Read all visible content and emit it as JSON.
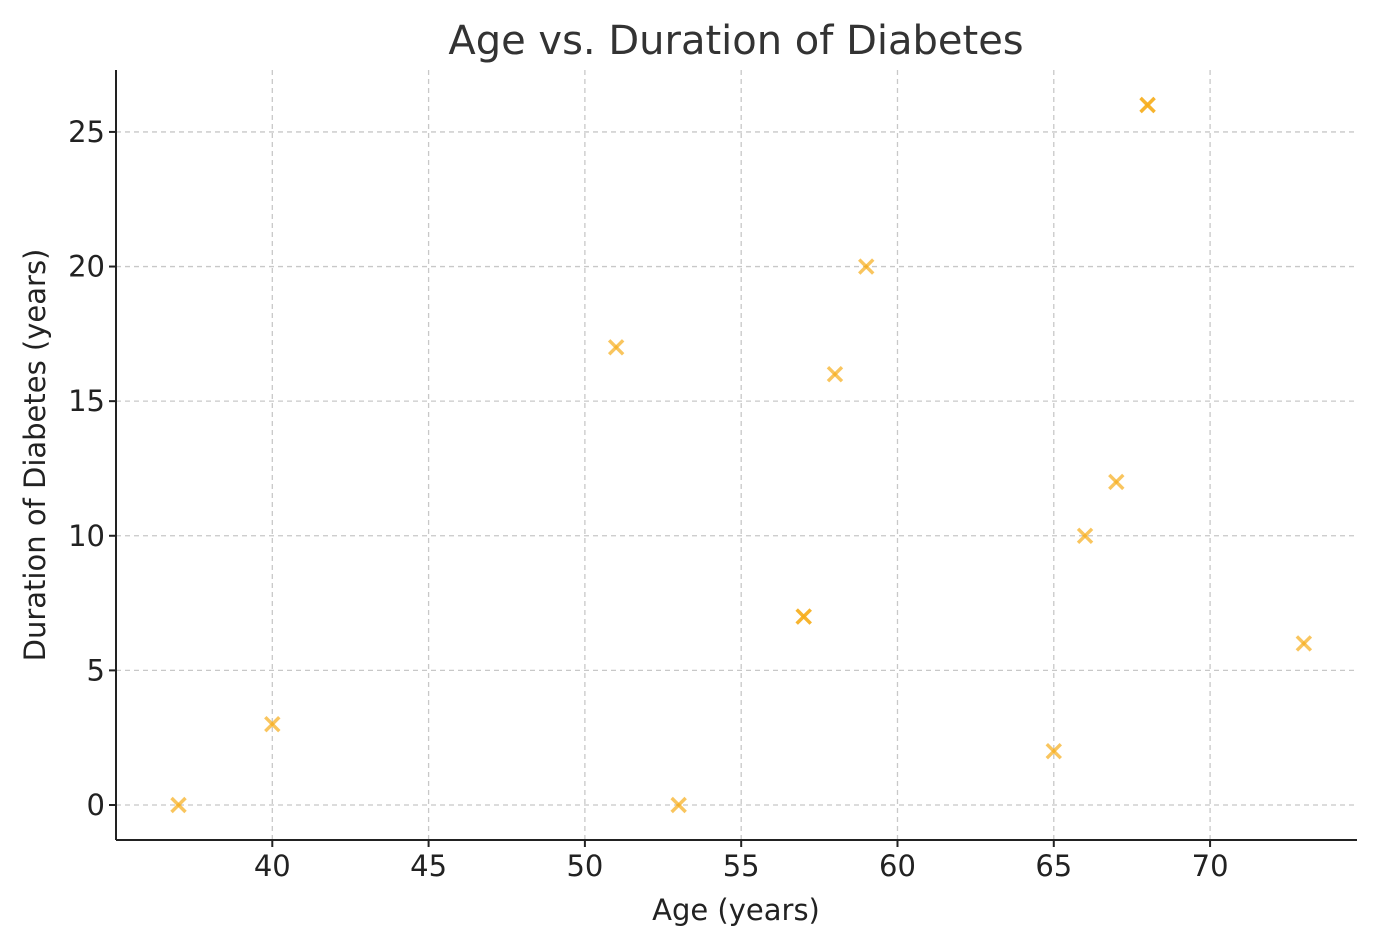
{
  "chart_data": {
    "type": "scatter",
    "title": "Age vs. Duration of Diabetes",
    "xlabel": "Age (years)",
    "ylabel": "Duration of Diabetes (years)",
    "xlim": [
      35,
      74.7
    ],
    "ylim": [
      -1.3,
      27.3
    ],
    "xticks": [
      40,
      45,
      50,
      55,
      60,
      65,
      70
    ],
    "yticks": [
      0,
      5,
      10,
      15,
      20,
      25
    ],
    "grid": true,
    "legend": "none",
    "marker": "x",
    "colors": {
      "marker": "#f6ad1a",
      "title": "#333333",
      "text": "#222222",
      "grid": "#c8c8c8"
    },
    "points": [
      {
        "x": 37,
        "y": 0
      },
      {
        "x": 40,
        "y": 3
      },
      {
        "x": 51,
        "y": 17
      },
      {
        "x": 53,
        "y": 0
      },
      {
        "x": 57,
        "y": 7
      },
      {
        "x": 57,
        "y": 7
      },
      {
        "x": 58,
        "y": 16
      },
      {
        "x": 59,
        "y": 20
      },
      {
        "x": 65,
        "y": 2
      },
      {
        "x": 66,
        "y": 10
      },
      {
        "x": 67,
        "y": 12
      },
      {
        "x": 68,
        "y": 26
      },
      {
        "x": 68,
        "y": 26
      },
      {
        "x": 73,
        "y": 6
      }
    ]
  }
}
